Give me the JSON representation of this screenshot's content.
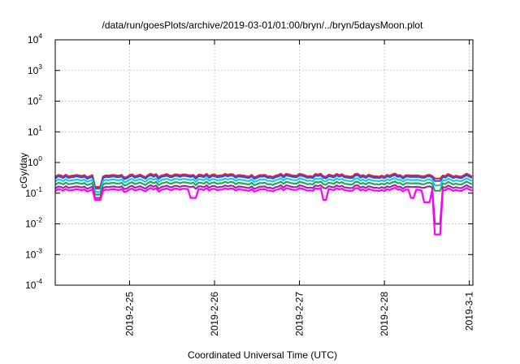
{
  "chart_data": {
    "type": "line",
    "title": "/data/run/goesPlots/archive/2019-03-01/01:00/bryn/../bryn/5daysMoon.plot",
    "xlabel": "Coordinated Universal Time (UTC)",
    "ylabel": "cGy/day",
    "y_scale": "log",
    "ylim": [
      0.0001,
      10000
    ],
    "y_ticks": [
      {
        "value": 0.0001,
        "base": "10",
        "exp": "-4"
      },
      {
        "value": 0.001,
        "base": "10",
        "exp": "-3"
      },
      {
        "value": 0.01,
        "base": "10",
        "exp": "-2"
      },
      {
        "value": 0.1,
        "base": "10",
        "exp": "-1"
      },
      {
        "value": 1,
        "base": "10",
        "exp": "0"
      },
      {
        "value": 10,
        "base": "10",
        "exp": "1"
      },
      {
        "value": 100,
        "base": "10",
        "exp": "2"
      },
      {
        "value": 1000,
        "base": "10",
        "exp": "3"
      },
      {
        "value": 10000,
        "base": "10",
        "exp": "4"
      }
    ],
    "xlim": [
      "2019-02-24T03:00",
      "2019-03-01T01:00"
    ],
    "x_ticks": [
      {
        "value": "2019-02-25T00:00",
        "label": "2019-2-25"
      },
      {
        "value": "2019-02-26T00:00",
        "label": "2019-2-26"
      },
      {
        "value": "2019-02-27T00:00",
        "label": "2019-2-27"
      },
      {
        "value": "2019-02-28T00:00",
        "label": "2019-2-28"
      },
      {
        "value": "2019-03-01T00:00",
        "label": "2019-3-1"
      }
    ],
    "grid": true,
    "legend": "none",
    "series": [
      {
        "color": "#e8202a",
        "base": 0.38,
        "dips": [
          [
            "2019-02-24T15:00",
            0.16
          ],
          [
            "2019-02-28T15:00",
            0.3
          ]
        ]
      },
      {
        "color": "#3050e0",
        "base": 0.34,
        "dips": [
          [
            "2019-02-24T15:00",
            0.14
          ],
          [
            "2019-02-28T15:00",
            0.25
          ]
        ]
      },
      {
        "color": "#20c8e0",
        "base": 0.27,
        "dips": [
          [
            "2019-02-24T15:00",
            0.11
          ],
          [
            "2019-02-28T15:00",
            0.18
          ]
        ]
      },
      {
        "color": "#28a850",
        "base": 0.21,
        "dips": [
          [
            "2019-02-24T15:00",
            0.09
          ],
          [
            "2019-02-28T15:00",
            0.12
          ]
        ]
      },
      {
        "color": "#9a2aa8",
        "base": 0.16,
        "dips": [
          [
            "2019-02-24T15:00",
            0.07
          ],
          [
            "2019-02-28T15:00",
            0.01
          ]
        ]
      },
      {
        "color": "#ff00ff",
        "base": 0.13,
        "dips": [
          [
            "2019-02-24T15:00",
            0.06
          ],
          [
            "2019-02-25T18:00",
            0.07
          ],
          [
            "2019-02-27T07:00",
            0.06
          ],
          [
            "2019-02-28T08:00",
            0.07
          ],
          [
            "2019-02-28T12:00",
            0.05
          ],
          [
            "2019-02-28T15:00",
            0.0045
          ]
        ]
      }
    ]
  }
}
